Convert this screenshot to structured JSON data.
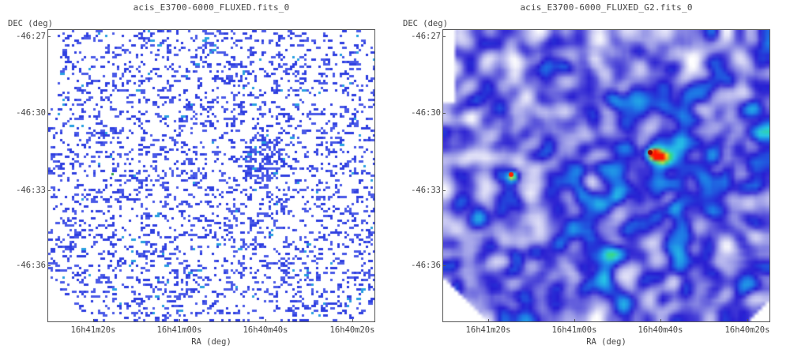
{
  "panels": [
    {
      "title": "acis_E3700-6000_FLUXED.fits_0",
      "ylabel": "DEC (deg)",
      "xlabel": "RA (deg)",
      "yticks": [
        "-46:27",
        "-46:30",
        "-46:33",
        "-46:36"
      ],
      "xticks": [
        "16h41m20s",
        "16h41m00s",
        "16h40m40s",
        "16h40m20s"
      ],
      "style": "sparse"
    },
    {
      "title": "acis_E3700-6000_FLUXED_G2.fits_0",
      "ylabel": "DEC (deg)",
      "xlabel": "RA (deg)",
      "yticks": [
        "-46:27",
        "-46:30",
        "-46:33",
        "-46:36"
      ],
      "xticks": [
        "16h41m20s",
        "16h41m00s",
        "16h40m40s",
        "16h40m20s"
      ],
      "style": "smoothed"
    }
  ],
  "colors": {
    "sparse_pixel": "#2f3fe0",
    "sparse_hot": "#2aa0e0",
    "smooth_low": "#2a1fcf",
    "smooth_mid": "#2ec4e8",
    "smooth_high": "#ff2200"
  }
}
